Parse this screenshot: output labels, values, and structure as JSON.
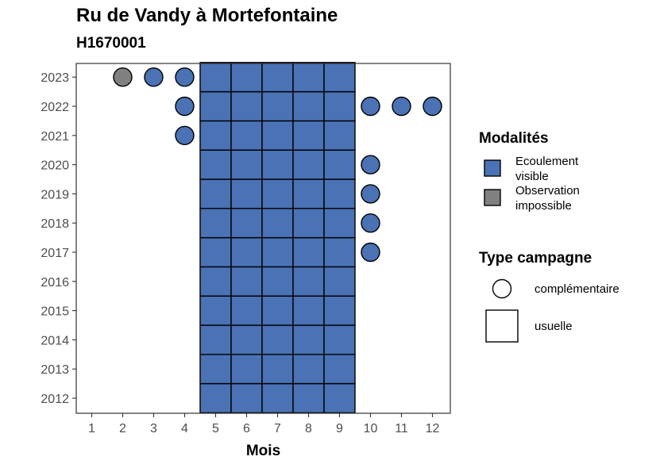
{
  "chart_data": {
    "type": "heatmap",
    "title": "Ru de Vandy à Mortefontaine",
    "subtitle": "H1670001",
    "xlabel": "Mois",
    "ylabel": "",
    "x_categories": [
      "1",
      "2",
      "3",
      "4",
      "5",
      "6",
      "7",
      "8",
      "9",
      "10",
      "11",
      "12"
    ],
    "y_categories": [
      "2012",
      "2013",
      "2014",
      "2015",
      "2016",
      "2017",
      "2018",
      "2019",
      "2020",
      "2021",
      "2022",
      "2023"
    ],
    "colors": {
      "Ecoulement visible": "#4a72b4",
      "Observation impossible": "#808080"
    },
    "legend_modalites": {
      "title": "Modalités",
      "items": [
        {
          "key": "Ecoulement visible",
          "lines": [
            "Ecoulement",
            "visible"
          ],
          "color": "#4a72b4"
        },
        {
          "key": "Observation impossible",
          "lines": [
            "Observation",
            "impossible"
          ],
          "color": "#808080"
        }
      ]
    },
    "legend_type": {
      "title": "Type campagne",
      "items": [
        {
          "label": "complémentaire",
          "shape": "circle"
        },
        {
          "label": "usuelle",
          "shape": "square"
        }
      ]
    },
    "points": [
      {
        "year": "2023",
        "month": "2",
        "modalite": "Observation impossible",
        "type": "complémentaire"
      },
      {
        "year": "2023",
        "month": "3",
        "modalite": "Ecoulement visible",
        "type": "complémentaire"
      },
      {
        "year": "2023",
        "month": "4",
        "modalite": "Ecoulement visible",
        "type": "complémentaire"
      },
      {
        "year": "2022",
        "month": "4",
        "modalite": "Ecoulement visible",
        "type": "complémentaire"
      },
      {
        "year": "2022",
        "month": "10",
        "modalite": "Ecoulement visible",
        "type": "complémentaire"
      },
      {
        "year": "2022",
        "month": "11",
        "modalite": "Ecoulement visible",
        "type": "complémentaire"
      },
      {
        "year": "2022",
        "month": "12",
        "modalite": "Ecoulement visible",
        "type": "complémentaire"
      },
      {
        "year": "2021",
        "month": "4",
        "modalite": "Ecoulement visible",
        "type": "complémentaire"
      },
      {
        "year": "2020",
        "month": "10",
        "modalite": "Ecoulement visible",
        "type": "complémentaire"
      },
      {
        "year": "2019",
        "month": "10",
        "modalite": "Ecoulement visible",
        "type": "complémentaire"
      },
      {
        "year": "2018",
        "month": "10",
        "modalite": "Ecoulement visible",
        "type": "complémentaire"
      },
      {
        "year": "2017",
        "month": "10",
        "modalite": "Ecoulement visible",
        "type": "complémentaire"
      }
    ],
    "usual_months": [
      "5",
      "6",
      "7",
      "8",
      "9"
    ],
    "usual_years": [
      "2012",
      "2013",
      "2014",
      "2015",
      "2016",
      "2017",
      "2018",
      "2019",
      "2020",
      "2021",
      "2022",
      "2023"
    ],
    "usual_modalite": "Ecoulement visible"
  }
}
